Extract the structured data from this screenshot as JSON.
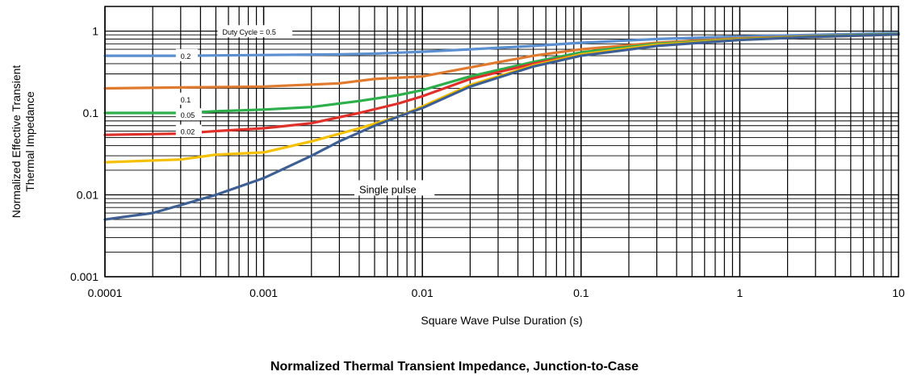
{
  "caption": "Normalized Thermal Transient Impedance, Junction-to-Case",
  "chart_data": {
    "type": "line",
    "title": "",
    "xlabel": "Square Wave Pulse Duration (s)",
    "ylabel_lines": [
      "Normalized Effective Transient",
      "Thermal Impedance"
    ],
    "x_scale": "log",
    "y_scale": "log",
    "xlim": [
      0.0001,
      10
    ],
    "ylim": [
      0.001,
      2
    ],
    "grid": true,
    "x_ticks": [
      {
        "value": 0.0001,
        "label": "0.0001"
      },
      {
        "value": 0.001,
        "label": "0.001"
      },
      {
        "value": 0.01,
        "label": "0.01"
      },
      {
        "value": 0.1,
        "label": "0.1"
      },
      {
        "value": 1,
        "label": "1"
      },
      {
        "value": 10,
        "label": "10"
      }
    ],
    "y_ticks": [
      {
        "value": 0.001,
        "label": "0.001"
      },
      {
        "value": 0.01,
        "label": "0.01"
      },
      {
        "value": 0.1,
        "label": "0.1"
      },
      {
        "value": 1,
        "label": "1"
      }
    ],
    "series": [
      {
        "name": "Duty Cycle = 0.5",
        "color": "#5b8fd0",
        "x": [
          0.0001,
          0.0003,
          0.001,
          0.003,
          0.005,
          0.01,
          0.02,
          0.05,
          0.1,
          0.3,
          1,
          3,
          10
        ],
        "y": [
          0.5,
          0.5,
          0.51,
          0.52,
          0.53,
          0.56,
          0.6,
          0.66,
          0.72,
          0.8,
          0.86,
          0.9,
          0.95
        ]
      },
      {
        "name": "0.2",
        "color": "#e07a2f",
        "x": [
          0.0001,
          0.0003,
          0.001,
          0.003,
          0.005,
          0.01,
          0.02,
          0.05,
          0.1,
          0.3,
          1,
          3,
          10
        ],
        "y": [
          0.2,
          0.205,
          0.21,
          0.23,
          0.26,
          0.28,
          0.36,
          0.5,
          0.6,
          0.72,
          0.82,
          0.87,
          0.92
        ]
      },
      {
        "name": "0.1",
        "color": "#2db04b",
        "x": [
          0.0001,
          0.0003,
          0.0005,
          0.001,
          0.002,
          0.004,
          0.007,
          0.01,
          0.02,
          0.05,
          0.1,
          0.3,
          1,
          3,
          10
        ],
        "y": [
          0.1,
          0.1,
          0.105,
          0.11,
          0.118,
          0.14,
          0.165,
          0.19,
          0.28,
          0.42,
          0.55,
          0.7,
          0.8,
          0.86,
          0.92
        ]
      },
      {
        "name": "0.05",
        "color": "#e0302a",
        "x": [
          0.0001,
          0.0003,
          0.0005,
          0.001,
          0.002,
          0.004,
          0.007,
          0.01,
          0.02,
          0.05,
          0.1,
          0.3,
          1,
          3,
          10
        ],
        "y": [
          0.054,
          0.056,
          0.06,
          0.065,
          0.075,
          0.1,
          0.13,
          0.16,
          0.26,
          0.4,
          0.52,
          0.68,
          0.79,
          0.85,
          0.91
        ]
      },
      {
        "name": "0.02",
        "color": "#f5c000",
        "x": [
          0.0001,
          0.0003,
          0.0005,
          0.001,
          0.002,
          0.004,
          0.007,
          0.01,
          0.02,
          0.05,
          0.1,
          0.3,
          1,
          3,
          10
        ],
        "y": [
          0.025,
          0.027,
          0.031,
          0.033,
          0.045,
          0.065,
          0.09,
          0.12,
          0.22,
          0.38,
          0.52,
          0.68,
          0.79,
          0.85,
          0.91
        ]
      },
      {
        "name": "Single pulse",
        "color": "#3d5f94",
        "x": [
          0.0001,
          0.0002,
          0.0003,
          0.0005,
          0.001,
          0.002,
          0.003,
          0.005,
          0.007,
          0.01,
          0.02,
          0.05,
          0.1,
          0.3,
          1,
          3,
          10
        ],
        "y": [
          0.005,
          0.006,
          0.0075,
          0.01,
          0.016,
          0.03,
          0.045,
          0.07,
          0.09,
          0.115,
          0.21,
          0.37,
          0.5,
          0.66,
          0.78,
          0.85,
          0.91
        ]
      }
    ],
    "curve_labels": [
      {
        "text": "Duty Cycle = 0.5",
        "x": 0.00055,
        "y": 0.9,
        "style": "small"
      },
      {
        "text": "0.2",
        "x": 0.0003,
        "y": 0.46,
        "style": "small"
      },
      {
        "text": "0.1",
        "x": 0.0003,
        "y": 0.135,
        "style": "small"
      },
      {
        "text": "0.05",
        "x": 0.0003,
        "y": 0.087,
        "style": "small"
      },
      {
        "text": "0.02",
        "x": 0.0003,
        "y": 0.055,
        "style": "small"
      },
      {
        "text": "Single pulse",
        "x": 0.004,
        "y": 0.0105,
        "style": "med"
      }
    ]
  }
}
